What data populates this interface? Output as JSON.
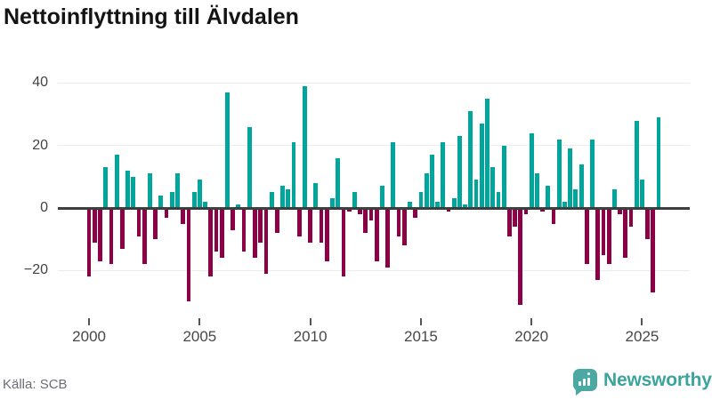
{
  "title": "Nettoinflyttning till Älvdalen",
  "source": {
    "label": "Källa: SCB"
  },
  "branding": {
    "name": "Newsworthy",
    "icon": "newsworthy-speech-bubble-barchart-icon"
  },
  "colors": {
    "positive_bar": "#00a59c",
    "negative_bar": "#8c0045",
    "zero_line": "#3e3e3e",
    "gridline": "#ececec",
    "brand_teal": "#3ba49c",
    "brand_icon_teal": "#4aa9a2",
    "title_text": "#141414",
    "axis_text": "#474747",
    "source_text": "#6b6b74"
  },
  "chart_data": {
    "type": "bar",
    "title": "Nettoinflyttning till Älvdalen",
    "frequency": "quarterly",
    "x_start": "2000 Q1",
    "x_end": "2025 Q4",
    "x_tick_labels": [
      "2000",
      "2005",
      "2010",
      "2015",
      "2020",
      "2025"
    ],
    "x_tick_years": [
      2000,
      2005,
      2010,
      2015,
      2020,
      2025
    ],
    "y_ticks": [
      40,
      20,
      0,
      -20
    ],
    "y_tick_labels": [
      "40",
      "20",
      "0",
      "−20"
    ],
    "ylim": [
      -34,
      42
    ],
    "grid": "horizontal",
    "legend": "none",
    "series_note": "single series; positive quarters teal, negative quarters dark red",
    "values": [
      -22,
      -11,
      -17,
      13,
      -18,
      17,
      -13,
      12,
      10,
      -9,
      -18,
      11,
      -10,
      4,
      -3,
      5,
      11,
      -5,
      -30,
      5,
      9,
      2,
      -22,
      -14,
      -16,
      37,
      -7,
      1,
      -14,
      26,
      -16,
      -11,
      -21,
      5,
      -8,
      7,
      6,
      21,
      -9,
      39,
      -11,
      8,
      -11,
      -17,
      3,
      16,
      -22,
      -1,
      5,
      -2,
      -8,
      -4,
      -17,
      7,
      -19,
      21,
      -9,
      -12,
      2,
      -3,
      5,
      11,
      17,
      2,
      21,
      -1,
      3,
      23,
      1,
      31,
      9,
      27,
      35,
      13,
      5,
      20,
      -9,
      -6,
      -31,
      -2,
      24,
      11,
      -1,
      7,
      -5,
      22,
      2,
      19,
      6,
      14,
      -18,
      22,
      -23,
      -15,
      -18,
      6,
      -2,
      -16,
      -6,
      28,
      9,
      -10,
      -27,
      29
    ]
  }
}
